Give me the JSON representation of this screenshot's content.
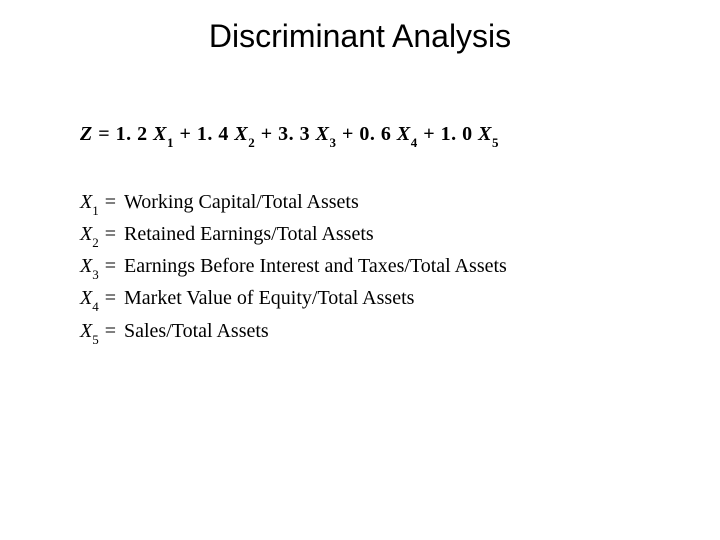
{
  "title": "Discriminant Analysis",
  "equation": {
    "lhs": "Z",
    "terms": [
      {
        "coef": "1. 2",
        "var": "X",
        "sub": "1",
        "prefix": ""
      },
      {
        "coef": "1. 4",
        "var": "X",
        "sub": "2",
        "prefix": " + "
      },
      {
        "coef": "3. 3",
        "var": "X",
        "sub": "3",
        "prefix": " + "
      },
      {
        "coef": "0. 6",
        "var": "X",
        "sub": "4",
        "prefix": " + "
      },
      {
        "coef": "1. 0",
        "var": "X",
        "sub": "5",
        "prefix": " + "
      }
    ]
  },
  "definitions": [
    {
      "var": "X",
      "sub": "1",
      "desc": "Working Capital/Total Assets"
    },
    {
      "var": "X",
      "sub": "2",
      "desc": "Retained Earnings/Total Assets"
    },
    {
      "var": "X",
      "sub": "3",
      "desc": "Earnings Before Interest and Taxes/Total Assets"
    },
    {
      "var": "X",
      "sub": "4",
      "desc": "Market Value of Equity/Total Assets"
    },
    {
      "var": "X",
      "sub": "5",
      "desc": "Sales/Total Assets"
    }
  ],
  "style": {
    "background_color": "#ffffff",
    "text_color": "#000000",
    "title_fontsize": 32,
    "body_fontsize": 20,
    "sub_fontsize": 13,
    "title_font": "Arial",
    "body_font": "Georgia"
  }
}
